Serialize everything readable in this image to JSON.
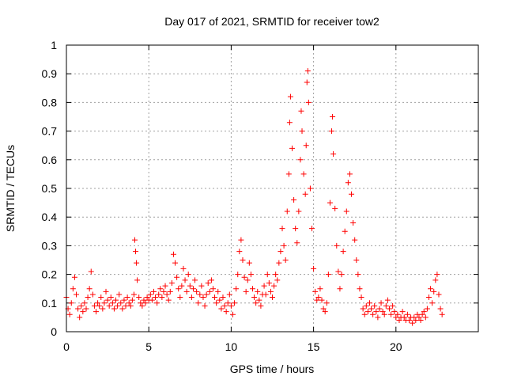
{
  "chart_data": {
    "type": "scatter",
    "title": "Day 017 of 2021, SRMTID for receiver tow2",
    "xlabel": "GPS time / hours",
    "ylabel": "SRMTID / TECUs",
    "xlim": [
      0,
      25
    ],
    "ylim": [
      0,
      1
    ],
    "xticks": [
      0,
      5,
      10,
      15,
      20
    ],
    "xtick_labels": [
      "0",
      "5",
      "10",
      "15",
      "20"
    ],
    "yticks": [
      0,
      0.1,
      0.2,
      0.3,
      0.4,
      0.5,
      0.6,
      0.7,
      0.8,
      0.9,
      1
    ],
    "ytick_labels": [
      "0",
      "0.1",
      "0.2",
      "0.3",
      "0.4",
      "0.5",
      "0.6",
      "0.7",
      "0.8",
      "0.9",
      "1"
    ],
    "grid": true,
    "marker": "+",
    "color": "#ff0000",
    "series": [
      {
        "name": "SRMTID",
        "points": [
          [
            0.0,
            0.12
          ],
          [
            0.1,
            0.08
          ],
          [
            0.2,
            0.06
          ],
          [
            0.3,
            0.1
          ],
          [
            0.4,
            0.15
          ],
          [
            0.5,
            0.19
          ],
          [
            0.6,
            0.13
          ],
          [
            0.7,
            0.08
          ],
          [
            0.8,
            0.05
          ],
          [
            0.9,
            0.09
          ],
          [
            1.0,
            0.07
          ],
          [
            1.1,
            0.1
          ],
          [
            1.2,
            0.08
          ],
          [
            1.3,
            0.12
          ],
          [
            1.4,
            0.15
          ],
          [
            1.5,
            0.21
          ],
          [
            1.6,
            0.13
          ],
          [
            1.7,
            0.09
          ],
          [
            1.8,
            0.07
          ],
          [
            1.9,
            0.1
          ],
          [
            2.0,
            0.09
          ],
          [
            2.1,
            0.12
          ],
          [
            2.2,
            0.08
          ],
          [
            2.3,
            0.1
          ],
          [
            2.4,
            0.14
          ],
          [
            2.5,
            0.11
          ],
          [
            2.6,
            0.09
          ],
          [
            2.7,
            0.12
          ],
          [
            2.8,
            0.1
          ],
          [
            2.9,
            0.08
          ],
          [
            3.0,
            0.11
          ],
          [
            3.1,
            0.09
          ],
          [
            3.2,
            0.13
          ],
          [
            3.3,
            0.1
          ],
          [
            3.4,
            0.08
          ],
          [
            3.5,
            0.11
          ],
          [
            3.6,
            0.09
          ],
          [
            3.7,
            0.12
          ],
          [
            3.8,
            0.1
          ],
          [
            3.9,
            0.09
          ],
          [
            4.0,
            0.11
          ],
          [
            4.1,
            0.13
          ],
          [
            4.15,
            0.32
          ],
          [
            4.2,
            0.28
          ],
          [
            4.25,
            0.24
          ],
          [
            4.3,
            0.18
          ],
          [
            4.4,
            0.12
          ],
          [
            4.5,
            0.1
          ],
          [
            4.6,
            0.09
          ],
          [
            4.7,
            0.11
          ],
          [
            4.8,
            0.1
          ],
          [
            4.9,
            0.12
          ],
          [
            5.0,
            0.11
          ],
          [
            5.1,
            0.13
          ],
          [
            5.2,
            0.11
          ],
          [
            5.3,
            0.14
          ],
          [
            5.4,
            0.12
          ],
          [
            5.5,
            0.1
          ],
          [
            5.6,
            0.13
          ],
          [
            5.7,
            0.15
          ],
          [
            5.8,
            0.12
          ],
          [
            5.9,
            0.14
          ],
          [
            6.0,
            0.16
          ],
          [
            6.1,
            0.13
          ],
          [
            6.2,
            0.11
          ],
          [
            6.3,
            0.14
          ],
          [
            6.4,
            0.17
          ],
          [
            6.5,
            0.27
          ],
          [
            6.6,
            0.24
          ],
          [
            6.7,
            0.19
          ],
          [
            6.8,
            0.15
          ],
          [
            6.9,
            0.12
          ],
          [
            7.0,
            0.16
          ],
          [
            7.1,
            0.22
          ],
          [
            7.2,
            0.18
          ],
          [
            7.3,
            0.14
          ],
          [
            7.4,
            0.2
          ],
          [
            7.5,
            0.16
          ],
          [
            7.6,
            0.12
          ],
          [
            7.7,
            0.15
          ],
          [
            7.8,
            0.18
          ],
          [
            7.9,
            0.14
          ],
          [
            8.0,
            0.1
          ],
          [
            8.1,
            0.13
          ],
          [
            8.2,
            0.16
          ],
          [
            8.3,
            0.12
          ],
          [
            8.4,
            0.09
          ],
          [
            8.5,
            0.13
          ],
          [
            8.6,
            0.17
          ],
          [
            8.7,
            0.14
          ],
          [
            8.8,
            0.18
          ],
          [
            8.9,
            0.15
          ],
          [
            9.0,
            0.12
          ],
          [
            9.1,
            0.1
          ],
          [
            9.2,
            0.14
          ],
          [
            9.3,
            0.11
          ],
          [
            9.4,
            0.08
          ],
          [
            9.5,
            0.12
          ],
          [
            9.6,
            0.09
          ],
          [
            9.7,
            0.07
          ],
          [
            9.8,
            0.1
          ],
          [
            9.9,
            0.13
          ],
          [
            10.0,
            0.09
          ],
          [
            10.1,
            0.06
          ],
          [
            10.2,
            0.1
          ],
          [
            10.3,
            0.15
          ],
          [
            10.4,
            0.2
          ],
          [
            10.5,
            0.28
          ],
          [
            10.6,
            0.32
          ],
          [
            10.7,
            0.25
          ],
          [
            10.8,
            0.19
          ],
          [
            10.9,
            0.14
          ],
          [
            11.0,
            0.18
          ],
          [
            11.1,
            0.24
          ],
          [
            11.2,
            0.2
          ],
          [
            11.3,
            0.15
          ],
          [
            11.4,
            0.12
          ],
          [
            11.5,
            0.1
          ],
          [
            11.6,
            0.14
          ],
          [
            11.7,
            0.11
          ],
          [
            11.8,
            0.09
          ],
          [
            11.9,
            0.13
          ],
          [
            12.0,
            0.16
          ],
          [
            12.1,
            0.13
          ],
          [
            12.2,
            0.2
          ],
          [
            12.3,
            0.17
          ],
          [
            12.4,
            0.14
          ],
          [
            12.5,
            0.12
          ],
          [
            12.6,
            0.16
          ],
          [
            12.7,
            0.2
          ],
          [
            12.8,
            0.18
          ],
          [
            12.9,
            0.24
          ],
          [
            13.0,
            0.28
          ],
          [
            13.1,
            0.36
          ],
          [
            13.2,
            0.3
          ],
          [
            13.3,
            0.25
          ],
          [
            13.4,
            0.42
          ],
          [
            13.5,
            0.55
          ],
          [
            13.55,
            0.73
          ],
          [
            13.6,
            0.82
          ],
          [
            13.7,
            0.64
          ],
          [
            13.8,
            0.46
          ],
          [
            13.9,
            0.36
          ],
          [
            14.0,
            0.31
          ],
          [
            14.1,
            0.42
          ],
          [
            14.2,
            0.6
          ],
          [
            14.25,
            0.77
          ],
          [
            14.3,
            0.7
          ],
          [
            14.4,
            0.55
          ],
          [
            14.5,
            0.48
          ],
          [
            14.55,
            0.65
          ],
          [
            14.6,
            0.87
          ],
          [
            14.65,
            0.91
          ],
          [
            14.7,
            0.8
          ],
          [
            14.8,
            0.5
          ],
          [
            14.9,
            0.36
          ],
          [
            15.0,
            0.22
          ],
          [
            15.1,
            0.14
          ],
          [
            15.2,
            0.11
          ],
          [
            15.3,
            0.12
          ],
          [
            15.4,
            0.15
          ],
          [
            15.5,
            0.11
          ],
          [
            15.6,
            0.08
          ],
          [
            15.7,
            0.07
          ],
          [
            15.8,
            0.1
          ],
          [
            15.9,
            0.2
          ],
          [
            16.0,
            0.45
          ],
          [
            16.1,
            0.7
          ],
          [
            16.15,
            0.75
          ],
          [
            16.2,
            0.62
          ],
          [
            16.3,
            0.43
          ],
          [
            16.4,
            0.3
          ],
          [
            16.5,
            0.21
          ],
          [
            16.6,
            0.15
          ],
          [
            16.7,
            0.2
          ],
          [
            16.8,
            0.28
          ],
          [
            16.9,
            0.35
          ],
          [
            17.0,
            0.42
          ],
          [
            17.1,
            0.52
          ],
          [
            17.2,
            0.55
          ],
          [
            17.3,
            0.48
          ],
          [
            17.4,
            0.38
          ],
          [
            17.5,
            0.32
          ],
          [
            17.6,
            0.25
          ],
          [
            17.7,
            0.2
          ],
          [
            17.8,
            0.15
          ],
          [
            17.9,
            0.12
          ],
          [
            18.0,
            0.08
          ],
          [
            18.1,
            0.06
          ],
          [
            18.2,
            0.09
          ],
          [
            18.3,
            0.07
          ],
          [
            18.4,
            0.1
          ],
          [
            18.5,
            0.08
          ],
          [
            18.6,
            0.06
          ],
          [
            18.7,
            0.09
          ],
          [
            18.8,
            0.07
          ],
          [
            18.9,
            0.05
          ],
          [
            19.0,
            0.08
          ],
          [
            19.1,
            0.1
          ],
          [
            19.2,
            0.07
          ],
          [
            19.3,
            0.06
          ],
          [
            19.4,
            0.09
          ],
          [
            19.5,
            0.11
          ],
          [
            19.6,
            0.08
          ],
          [
            19.7,
            0.06
          ],
          [
            19.8,
            0.09
          ],
          [
            19.9,
            0.07
          ],
          [
            20.0,
            0.05
          ],
          [
            20.1,
            0.06
          ],
          [
            20.2,
            0.04
          ],
          [
            20.3,
            0.05
          ],
          [
            20.4,
            0.07
          ],
          [
            20.5,
            0.05
          ],
          [
            20.6,
            0.04
          ],
          [
            20.7,
            0.06
          ],
          [
            20.8,
            0.04
          ],
          [
            20.9,
            0.05
          ],
          [
            21.0,
            0.03
          ],
          [
            21.1,
            0.05
          ],
          [
            21.2,
            0.04
          ],
          [
            21.3,
            0.06
          ],
          [
            21.4,
            0.05
          ],
          [
            21.5,
            0.04
          ],
          [
            21.6,
            0.06
          ],
          [
            21.7,
            0.07
          ],
          [
            21.8,
            0.05
          ],
          [
            21.9,
            0.08
          ],
          [
            22.0,
            0.12
          ],
          [
            22.1,
            0.15
          ],
          [
            22.2,
            0.1
          ],
          [
            22.3,
            0.14
          ],
          [
            22.4,
            0.18
          ],
          [
            22.5,
            0.2
          ],
          [
            22.6,
            0.13
          ],
          [
            22.7,
            0.08
          ],
          [
            22.8,
            0.06
          ]
        ]
      }
    ]
  }
}
